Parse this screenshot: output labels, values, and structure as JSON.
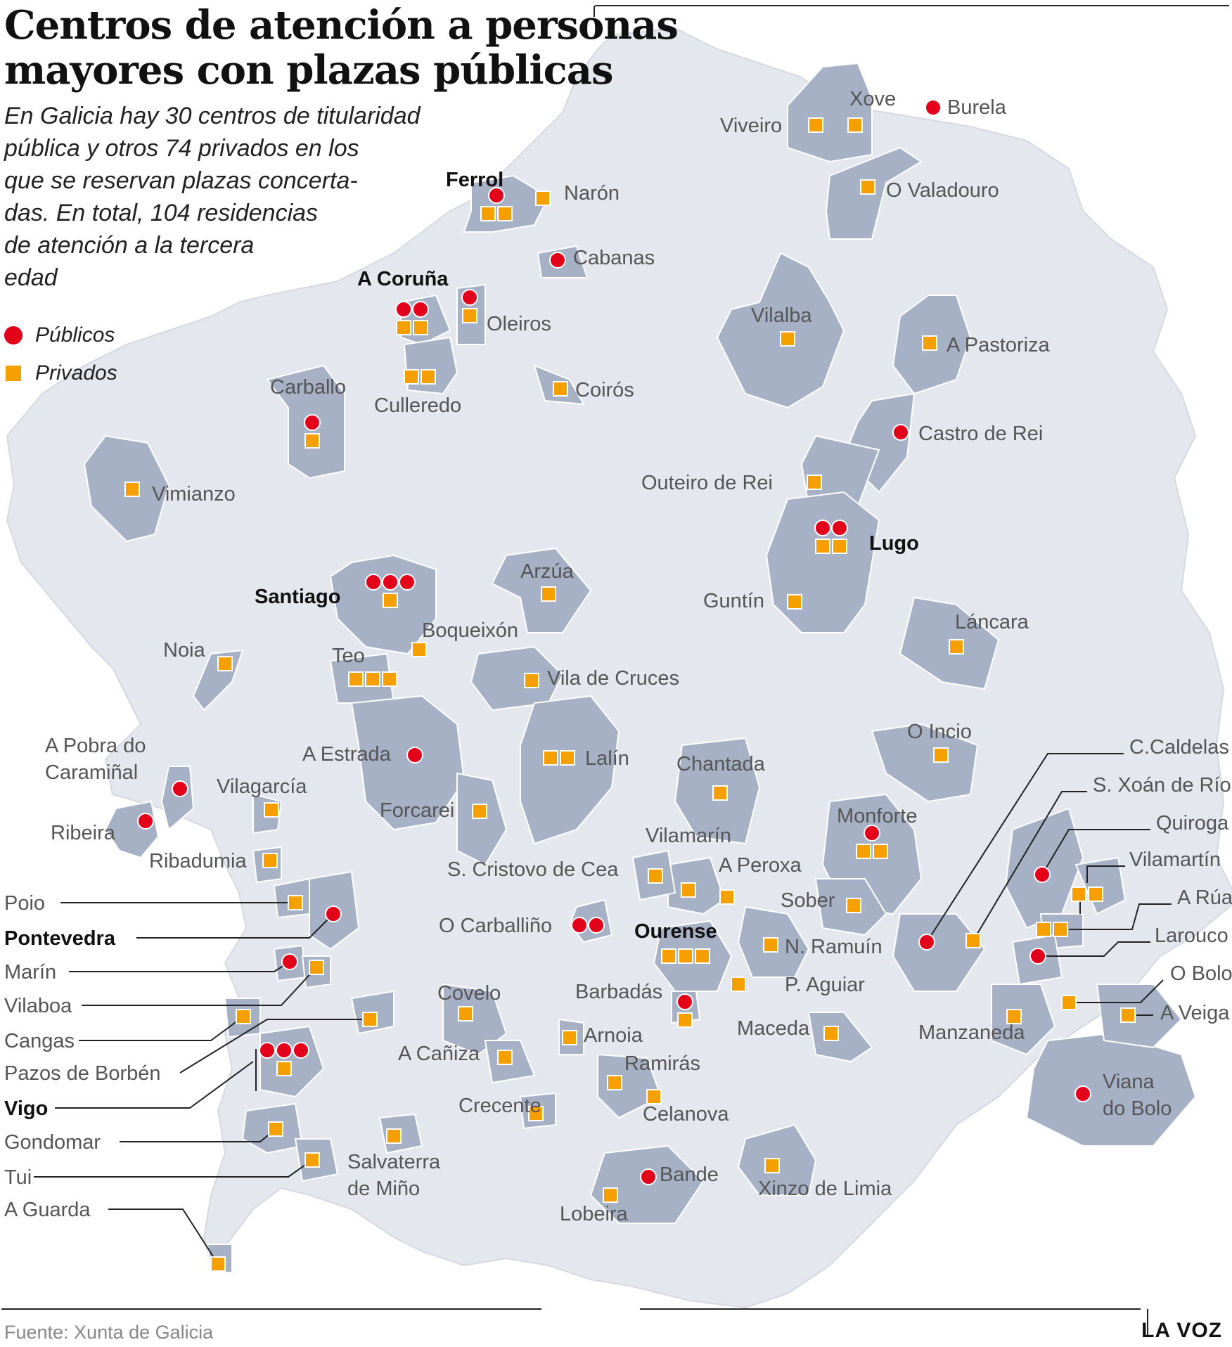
{
  "title_lines": [
    "Centros de atención a personas",
    "mayores con plazas públicas"
  ],
  "subtitle_lines": [
    "En Galicia hay 30 centros de titularidad",
    "pública y otros 74 privados en los",
    "que se reservan plazas concerta-",
    "das. En total, 104 residencias",
    "de atención a la tercera",
    "edad"
  ],
  "legend": {
    "public_label": "Públicos",
    "private_label": "Privados"
  },
  "colors": {
    "public": "#e2001a",
    "private": "#f5a000",
    "region": "#a7b1c6",
    "land": "#e4e7ee",
    "border": "#ffffff"
  },
  "source": "Fuente: Xunta de Galicia",
  "brand": "LA VOZ",
  "municipalities": [
    {
      "name": "Burela",
      "pub": 1,
      "priv": 0
    },
    {
      "name": "Xove",
      "pub": 0,
      "priv": 1
    },
    {
      "name": "Viveiro",
      "pub": 0,
      "priv": 1
    },
    {
      "name": "O Valadouro",
      "pub": 0,
      "priv": 1
    },
    {
      "name": "Ferrol",
      "pub": 1,
      "priv": 2,
      "bold": true
    },
    {
      "name": "Narón",
      "pub": 0,
      "priv": 1
    },
    {
      "name": "Cabanas",
      "pub": 1,
      "priv": 0
    },
    {
      "name": "A Coruña",
      "pub": 2,
      "priv": 2,
      "bold": true
    },
    {
      "name": "Oleiros",
      "pub": 1,
      "priv": 1
    },
    {
      "name": "Culleredo",
      "pub": 0,
      "priv": 2
    },
    {
      "name": "Coirós",
      "pub": 0,
      "priv": 1
    },
    {
      "name": "Vilalba",
      "pub": 0,
      "priv": 1
    },
    {
      "name": "A Pastoriza",
      "pub": 0,
      "priv": 1
    },
    {
      "name": "Carballo",
      "pub": 1,
      "priv": 1
    },
    {
      "name": "Castro de Rei",
      "pub": 1,
      "priv": 0
    },
    {
      "name": "Outeiro de Rei",
      "pub": 0,
      "priv": 1
    },
    {
      "name": "Vimianzo",
      "pub": 0,
      "priv": 1
    },
    {
      "name": "Lugo",
      "pub": 2,
      "priv": 2,
      "bold": true
    },
    {
      "name": "Santiago",
      "pub": 3,
      "priv": 1,
      "bold": true
    },
    {
      "name": "Arzúa",
      "pub": 0,
      "priv": 1
    },
    {
      "name": "Guntín",
      "pub": 0,
      "priv": 1
    },
    {
      "name": "Boqueixón",
      "pub": 0,
      "priv": 1
    },
    {
      "name": "Láncara",
      "pub": 0,
      "priv": 1
    },
    {
      "name": "Noia",
      "pub": 0,
      "priv": 1
    },
    {
      "name": "Teo",
      "pub": 0,
      "priv": 3
    },
    {
      "name": "Vila de Cruces",
      "pub": 0,
      "priv": 1
    },
    {
      "name": "A Estrada",
      "pub": 1,
      "priv": 0
    },
    {
      "name": "O Incio",
      "pub": 0,
      "priv": 1
    },
    {
      "name": "Lalín",
      "pub": 0,
      "priv": 2
    },
    {
      "name": "Chantada",
      "pub": 0,
      "priv": 1
    },
    {
      "name": "A Pobra do Caramiñal",
      "pub": 1,
      "priv": 0
    },
    {
      "name": "Vilagarcía",
      "pub": 0,
      "priv": 1
    },
    {
      "name": "Forcarei",
      "pub": 0,
      "priv": 1
    },
    {
      "name": "Monforte",
      "pub": 1,
      "priv": 2
    },
    {
      "name": "Ribeira",
      "pub": 1,
      "priv": 0
    },
    {
      "name": "Vilamarín",
      "pub": 0,
      "priv": 1
    },
    {
      "name": "Ribadumia",
      "pub": 0,
      "priv": 1
    },
    {
      "name": "S. Cristovo de Cea",
      "pub": 0,
      "priv": 1
    },
    {
      "name": "A Peroxa",
      "pub": 0,
      "priv": 1
    },
    {
      "name": "Sober",
      "pub": 0,
      "priv": 1
    },
    {
      "name": "O Carballiño",
      "pub": 2,
      "priv": 0
    },
    {
      "name": "Ourense",
      "pub": 0,
      "priv": 3,
      "bold": true
    },
    {
      "name": "N. Ramuín",
      "pub": 0,
      "priv": 1
    },
    {
      "name": "P. Aguiar",
      "pub": 0,
      "priv": 1
    },
    {
      "name": "Barbadás",
      "pub": 1,
      "priv": 1
    },
    {
      "name": "Covelo",
      "pub": 0,
      "priv": 1
    },
    {
      "name": "Maceda",
      "pub": 0,
      "priv": 1
    },
    {
      "name": "Arnoia",
      "pub": 0,
      "priv": 1
    },
    {
      "name": "A Cañiza",
      "pub": 0,
      "priv": 1
    },
    {
      "name": "Ramirás",
      "pub": 0,
      "priv": 1
    },
    {
      "name": "Crecente",
      "pub": 0,
      "priv": 1
    },
    {
      "name": "Celanova",
      "pub": 0,
      "priv": 1
    },
    {
      "name": "Salvaterra de Miño",
      "pub": 0,
      "priv": 1
    },
    {
      "name": "Bande",
      "pub": 1,
      "priv": 0
    },
    {
      "name": "Xinzo de Limia",
      "pub": 0,
      "priv": 1
    },
    {
      "name": "Lobeira",
      "pub": 0,
      "priv": 1
    },
    {
      "name": "Manzaneda",
      "pub": 0,
      "priv": 1
    },
    {
      "name": "Viana do Bolo",
      "pub": 1,
      "priv": 0
    },
    {
      "name": "C.Caldelas",
      "pub": 1,
      "priv": 0
    },
    {
      "name": "S. Xoán de Río",
      "pub": 0,
      "priv": 1
    },
    {
      "name": "Quiroga",
      "pub": 1,
      "priv": 0
    },
    {
      "name": "Vilamartín",
      "pub": 0,
      "priv": 2
    },
    {
      "name": "A Rúa",
      "pub": 0,
      "priv": 2
    },
    {
      "name": "Larouco",
      "pub": 1,
      "priv": 0
    },
    {
      "name": "O Bolo",
      "pub": 0,
      "priv": 1
    },
    {
      "name": "A Veiga",
      "pub": 0,
      "priv": 1
    },
    {
      "name": "Poio",
      "pub": 0,
      "priv": 1
    },
    {
      "name": "Pontevedra",
      "pub": 1,
      "priv": 0,
      "bold": true
    },
    {
      "name": "Marín",
      "pub": 1,
      "priv": 0
    },
    {
      "name": "Vilaboa",
      "pub": 0,
      "priv": 1
    },
    {
      "name": "Cangas",
      "pub": 0,
      "priv": 1
    },
    {
      "name": "Pazos de Borbén",
      "pub": 0,
      "priv": 1
    },
    {
      "name": "Vigo",
      "pub": 3,
      "priv": 1,
      "bold": true
    },
    {
      "name": "Gondomar",
      "pub": 0,
      "priv": 1
    },
    {
      "name": "Tui",
      "pub": 0,
      "priv": 1
    },
    {
      "name": "A Guarda",
      "pub": 0,
      "priv": 1
    }
  ]
}
